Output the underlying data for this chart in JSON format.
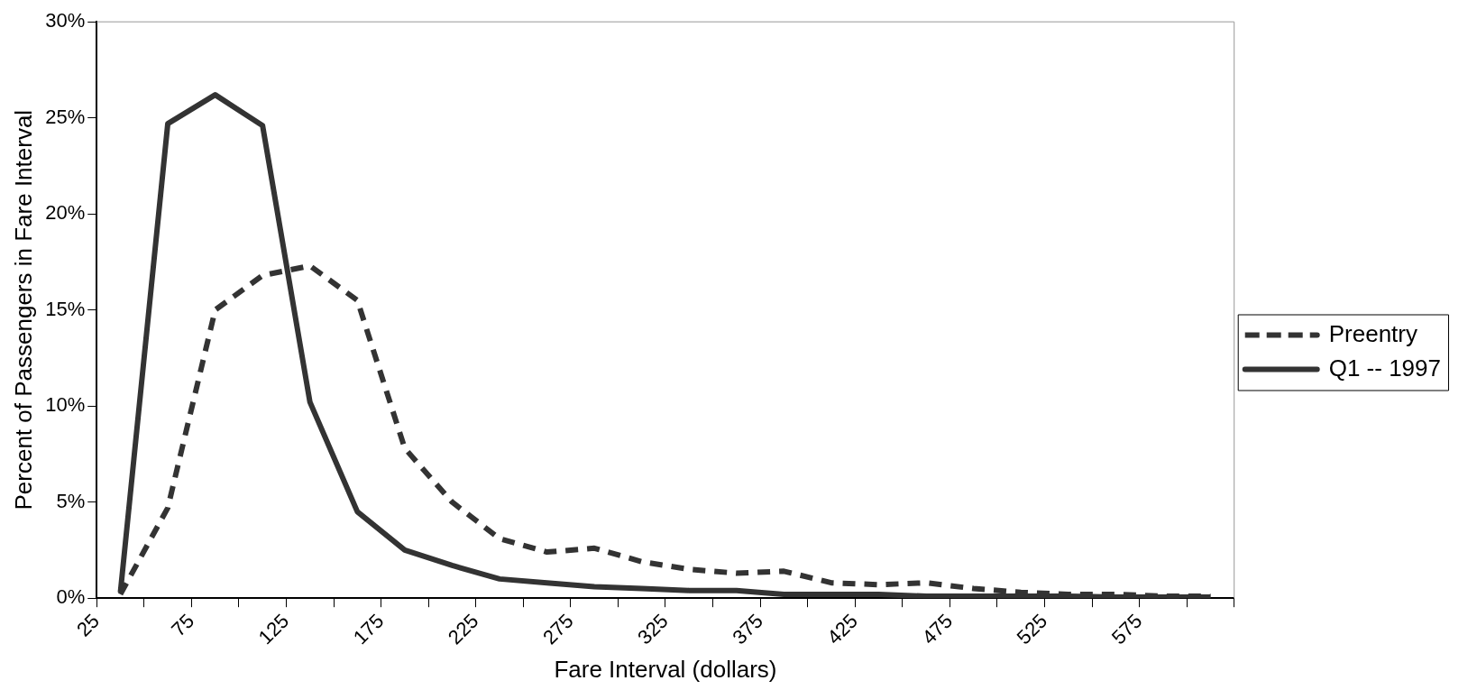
{
  "chart_data": {
    "type": "line",
    "xlabel": "Fare Interval (dollars)",
    "ylabel": "Percent of Passengers in Fare Interval",
    "x": [
      37.5,
      62.5,
      87.5,
      112.5,
      137.5,
      162.5,
      187.5,
      212.5,
      237.5,
      262.5,
      287.5,
      312.5,
      337.5,
      362.5,
      387.5,
      412.5,
      437.5,
      462.5,
      487.5,
      512.5,
      537.5,
      562.5,
      587.5,
      612.5
    ],
    "series": [
      {
        "name": "Preentry",
        "color": "#333333",
        "line_style": "dashed",
        "values": [
          0.2,
          4.7,
          15.0,
          16.8,
          17.3,
          15.5,
          7.8,
          5.0,
          3.1,
          2.4,
          2.6,
          1.9,
          1.5,
          1.3,
          1.4,
          0.8,
          0.7,
          0.8,
          0.5,
          0.3,
          0.2,
          0.2,
          0.1,
          0.1
        ]
      },
      {
        "name": "Q1 -- 1997",
        "color": "#333333",
        "line_style": "solid",
        "values": [
          0.3,
          24.7,
          26.2,
          24.6,
          10.2,
          4.5,
          2.5,
          1.7,
          1.0,
          0.8,
          0.6,
          0.5,
          0.4,
          0.4,
          0.2,
          0.2,
          0.2,
          0.1,
          0.1,
          0.1,
          0.1,
          0.05,
          0.05,
          0.05
        ]
      }
    ],
    "xlim": [
      25,
      625
    ],
    "xticks": [
      25,
      {
        "value": 50,
        "label": null
      },
      75,
      {
        "value": 100,
        "label": null
      },
      125,
      {
        "value": 150,
        "label": null
      },
      175,
      {
        "value": 200,
        "label": null
      },
      225,
      {
        "value": 250,
        "label": null
      },
      275,
      {
        "value": 300,
        "label": null
      },
      325,
      {
        "value": 350,
        "label": null
      },
      375,
      {
        "value": 400,
        "label": null
      },
      425,
      {
        "value": 450,
        "label": null
      },
      475,
      {
        "value": 500,
        "label": null
      },
      525,
      {
        "value": 550,
        "label": null
      },
      575,
      {
        "value": 600,
        "label": null
      },
      {
        "value": 625,
        "label": null
      }
    ],
    "ylim": [
      0,
      30
    ],
    "yticks": [
      {
        "value": 0,
        "label": "0%"
      },
      {
        "value": 5,
        "label": "5%"
      },
      {
        "value": 10,
        "label": "10%"
      },
      {
        "value": 15,
        "label": "15%"
      },
      {
        "value": 20,
        "label": "20%"
      },
      {
        "value": 25,
        "label": "25%"
      },
      {
        "value": 30,
        "label": "30%"
      }
    ],
    "grid": false,
    "legend": "right",
    "marker": "none"
  }
}
